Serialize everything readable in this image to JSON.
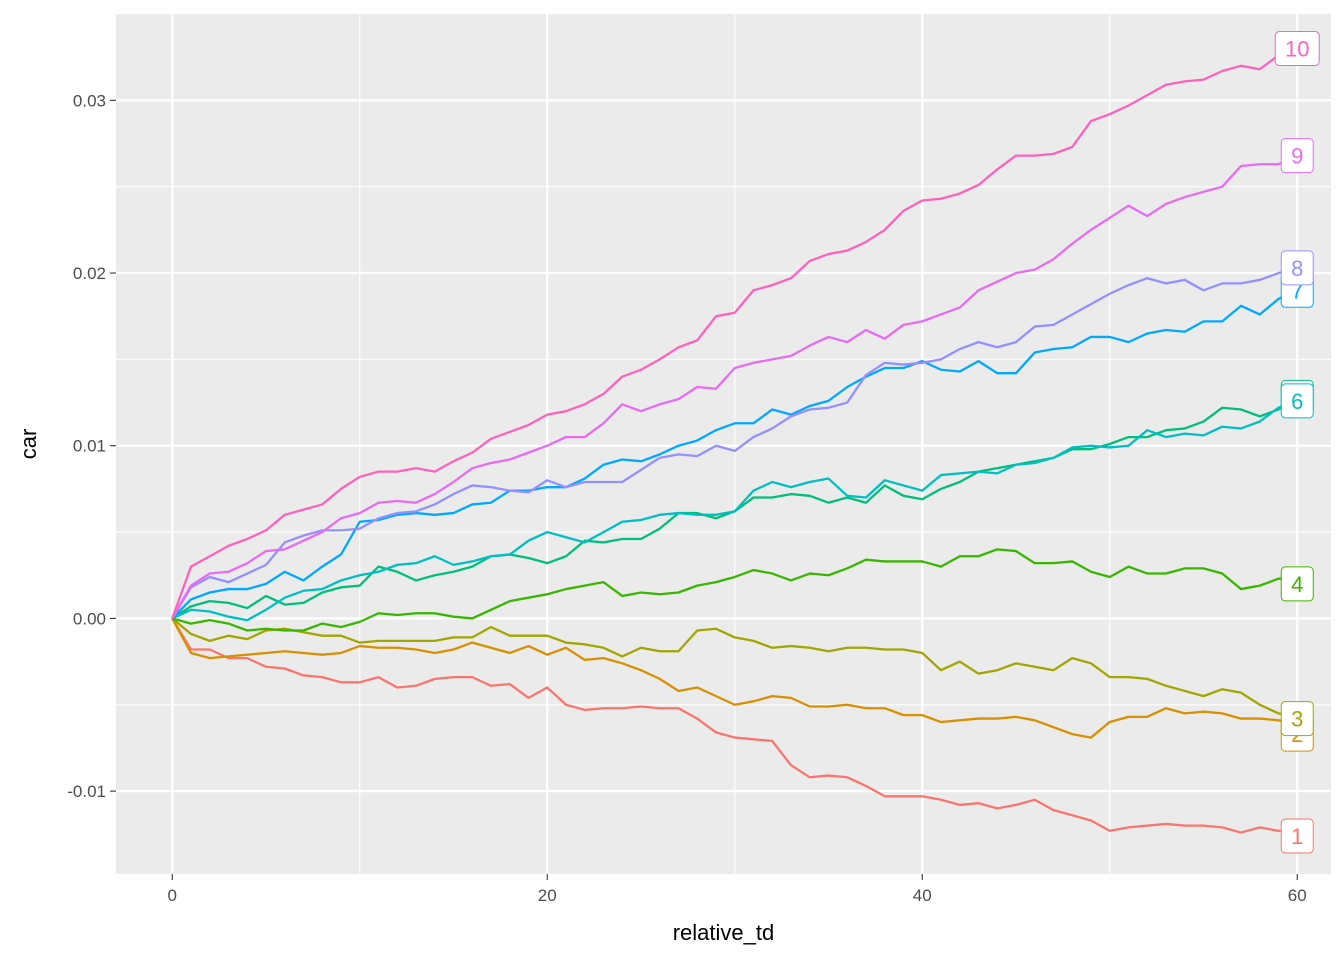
{
  "chart_data": {
    "type": "line",
    "title": "",
    "xlabel": "relative_td",
    "ylabel": "car",
    "xlim": [
      -3,
      61.8
    ],
    "ylim": [
      -0.0148,
      0.035
    ],
    "x_ticks": [
      0,
      20,
      40,
      60
    ],
    "x_tick_labels": [
      "0",
      "20",
      "40",
      "60"
    ],
    "y_ticks": [
      -0.01,
      0.0,
      0.01,
      0.02,
      0.03
    ],
    "y_tick_labels": [
      "-0.01",
      "0.00",
      "0.01",
      "0.02",
      "0.03"
    ],
    "grid": true,
    "legend": "none",
    "panel_background": "#EBEBEB",
    "grid_color": "#FFFFFF",
    "x_start": 0,
    "series": [
      {
        "name": "1",
        "color": "#F8766D",
        "label_y": -0.0126,
        "values": [
          0,
          -0.0018,
          -0.0018,
          -0.0023,
          -0.0023,
          -0.0028,
          -0.0029,
          -0.0033,
          -0.0034,
          -0.0037,
          -0.0037,
          -0.0034,
          -0.004,
          -0.0039,
          -0.0035,
          -0.0034,
          -0.0034,
          -0.0039,
          -0.0038,
          -0.0046,
          -0.004,
          -0.005,
          -0.0053,
          -0.0052,
          -0.0052,
          -0.0051,
          -0.0052,
          -0.0052,
          -0.0058,
          -0.0066,
          -0.0069,
          -0.007,
          -0.0071,
          -0.0085,
          -0.0092,
          -0.0091,
          -0.0092,
          -0.0097,
          -0.0103,
          -0.0103,
          -0.0103,
          -0.0105,
          -0.0108,
          -0.0107,
          -0.011,
          -0.0108,
          -0.0105,
          -0.0111,
          -0.0114,
          -0.0117,
          -0.0123,
          -0.0121,
          -0.012,
          -0.0119,
          -0.012,
          -0.012,
          -0.0121,
          -0.0124,
          -0.0121,
          -0.0123,
          -0.0124
        ]
      },
      {
        "name": "2",
        "color": "#D89000",
        "label_y": -0.0067,
        "values": [
          0,
          -0.002,
          -0.0023,
          -0.0022,
          -0.0021,
          -0.002,
          -0.0019,
          -0.002,
          -0.0021,
          -0.002,
          -0.0016,
          -0.0017,
          -0.0017,
          -0.0018,
          -0.002,
          -0.0018,
          -0.0014,
          -0.0017,
          -0.002,
          -0.0016,
          -0.0021,
          -0.0017,
          -0.0024,
          -0.0023,
          -0.0026,
          -0.003,
          -0.0035,
          -0.0042,
          -0.004,
          -0.0045,
          -0.005,
          -0.0048,
          -0.0045,
          -0.0046,
          -0.0051,
          -0.0051,
          -0.005,
          -0.0052,
          -0.0052,
          -0.0056,
          -0.0056,
          -0.006,
          -0.0059,
          -0.0058,
          -0.0058,
          -0.0057,
          -0.0059,
          -0.0063,
          -0.0067,
          -0.0069,
          -0.006,
          -0.0057,
          -0.0057,
          -0.0052,
          -0.0055,
          -0.0054,
          -0.0055,
          -0.0058,
          -0.0058,
          -0.0059,
          -0.0061
        ]
      },
      {
        "name": "3",
        "color": "#A3A500",
        "label_y": -0.0058,
        "values": [
          0,
          -0.0009,
          -0.0013,
          -0.001,
          -0.0012,
          -0.0007,
          -0.0006,
          -0.0008,
          -0.001,
          -0.001,
          -0.0014,
          -0.0013,
          -0.0013,
          -0.0013,
          -0.0013,
          -0.0011,
          -0.0011,
          -0.0005,
          -0.001,
          -0.001,
          -0.001,
          -0.0014,
          -0.0015,
          -0.0017,
          -0.0022,
          -0.0017,
          -0.0019,
          -0.0019,
          -0.0007,
          -0.0006,
          -0.0011,
          -0.0013,
          -0.0017,
          -0.0016,
          -0.0017,
          -0.0019,
          -0.0017,
          -0.0017,
          -0.0018,
          -0.0018,
          -0.002,
          -0.003,
          -0.0025,
          -0.0032,
          -0.003,
          -0.0026,
          -0.0028,
          -0.003,
          -0.0023,
          -0.0026,
          -0.0034,
          -0.0034,
          -0.0035,
          -0.0039,
          -0.0042,
          -0.0045,
          -0.0041,
          -0.0043,
          -0.005,
          -0.0055,
          -0.0057
        ]
      },
      {
        "name": "4",
        "color": "#39B600",
        "label_y": 0.002,
        "values": [
          0,
          -0.0003,
          -0.0001,
          -0.0003,
          -0.0007,
          -0.0006,
          -0.0007,
          -0.0007,
          -0.0003,
          -0.0005,
          -0.0002,
          0.0003,
          0.0002,
          0.0003,
          0.0003,
          0.0001,
          0.0,
          0.0005,
          0.001,
          0.0012,
          0.0014,
          0.0017,
          0.0019,
          0.0021,
          0.0013,
          0.0015,
          0.0014,
          0.0015,
          0.0019,
          0.0021,
          0.0024,
          0.0028,
          0.0026,
          0.0022,
          0.0026,
          0.0025,
          0.0029,
          0.0034,
          0.0033,
          0.0033,
          0.0033,
          0.003,
          0.0036,
          0.0036,
          0.004,
          0.0039,
          0.0032,
          0.0032,
          0.0033,
          0.0027,
          0.0024,
          0.003,
          0.0026,
          0.0026,
          0.0029,
          0.0029,
          0.0026,
          0.0017,
          0.0019,
          0.0023,
          0.0023
        ]
      },
      {
        "name": "5",
        "color": "#00BF7D",
        "label_y": 0.0128,
        "values": [
          0,
          0.0007,
          0.001,
          0.0009,
          0.0006,
          0.0013,
          0.0008,
          0.0009,
          0.0015,
          0.0018,
          0.0019,
          0.003,
          0.0027,
          0.0022,
          0.0025,
          0.0027,
          0.003,
          0.0036,
          0.0037,
          0.0035,
          0.0032,
          0.0036,
          0.0045,
          0.0044,
          0.0046,
          0.0046,
          0.0052,
          0.0061,
          0.0061,
          0.0058,
          0.0062,
          0.007,
          0.007,
          0.0072,
          0.0071,
          0.0067,
          0.007,
          0.0067,
          0.0077,
          0.0071,
          0.0069,
          0.0075,
          0.0079,
          0.0085,
          0.0087,
          0.0089,
          0.0091,
          0.0093,
          0.0098,
          0.0098,
          0.0101,
          0.0105,
          0.0105,
          0.0109,
          0.011,
          0.0114,
          0.0122,
          0.0121,
          0.0117,
          0.0121,
          0.0128
        ]
      },
      {
        "name": "6",
        "color": "#00BFC4",
        "label_y": 0.0126,
        "values": [
          0,
          0.0005,
          0.0004,
          0.0001,
          -0.0001,
          0.0005,
          0.0012,
          0.0016,
          0.0017,
          0.0022,
          0.0025,
          0.0027,
          0.0031,
          0.0032,
          0.0036,
          0.0031,
          0.0033,
          0.0036,
          0.0037,
          0.0045,
          0.005,
          0.0047,
          0.0044,
          0.005,
          0.0056,
          0.0057,
          0.006,
          0.0061,
          0.006,
          0.006,
          0.0062,
          0.0074,
          0.0079,
          0.0076,
          0.0079,
          0.0081,
          0.0071,
          0.007,
          0.008,
          0.0077,
          0.0074,
          0.0083,
          0.0084,
          0.0085,
          0.0084,
          0.0089,
          0.009,
          0.0093,
          0.0099,
          0.01,
          0.0099,
          0.01,
          0.0109,
          0.0105,
          0.0107,
          0.0106,
          0.0111,
          0.011,
          0.0114,
          0.0122,
          0.0126
        ]
      },
      {
        "name": "7",
        "color": "#00A9FF",
        "label_y": 0.019,
        "values": [
          0,
          0.0011,
          0.0015,
          0.0017,
          0.0017,
          0.002,
          0.0027,
          0.0022,
          0.003,
          0.0037,
          0.0056,
          0.0057,
          0.006,
          0.0061,
          0.006,
          0.0061,
          0.0066,
          0.0067,
          0.0074,
          0.0074,
          0.0076,
          0.0076,
          0.0081,
          0.0089,
          0.0092,
          0.0091,
          0.0095,
          0.01,
          0.0103,
          0.0109,
          0.0113,
          0.0113,
          0.0121,
          0.0118,
          0.0123,
          0.0126,
          0.0134,
          0.014,
          0.0145,
          0.0145,
          0.0149,
          0.0144,
          0.0143,
          0.0149,
          0.0142,
          0.0142,
          0.0154,
          0.0156,
          0.0157,
          0.0163,
          0.0163,
          0.016,
          0.0165,
          0.0167,
          0.0166,
          0.0172,
          0.0172,
          0.0181,
          0.0176,
          0.0185,
          0.019
        ]
      },
      {
        "name": "8",
        "color": "#9590FF",
        "label_y": 0.0203,
        "values": [
          0,
          0.0018,
          0.0024,
          0.0021,
          0.0026,
          0.0031,
          0.0044,
          0.0048,
          0.0051,
          0.0051,
          0.0052,
          0.0058,
          0.0061,
          0.0062,
          0.0066,
          0.0072,
          0.0077,
          0.0076,
          0.0074,
          0.0073,
          0.008,
          0.0076,
          0.0079,
          0.0079,
          0.0079,
          0.0086,
          0.0093,
          0.0095,
          0.0094,
          0.01,
          0.0097,
          0.0105,
          0.011,
          0.0117,
          0.0121,
          0.0122,
          0.0125,
          0.0141,
          0.0148,
          0.0147,
          0.0148,
          0.015,
          0.0156,
          0.016,
          0.0157,
          0.016,
          0.0169,
          0.017,
          0.0176,
          0.0182,
          0.0188,
          0.0193,
          0.0197,
          0.0194,
          0.0196,
          0.019,
          0.0194,
          0.0194,
          0.0196,
          0.02,
          0.0203
        ]
      },
      {
        "name": "9",
        "color": "#E76BF3",
        "label_y": 0.0268,
        "values": [
          0,
          0.0019,
          0.0026,
          0.0027,
          0.0032,
          0.0039,
          0.004,
          0.0045,
          0.005,
          0.0058,
          0.0061,
          0.0067,
          0.0068,
          0.0067,
          0.0072,
          0.0079,
          0.0087,
          0.009,
          0.0092,
          0.0096,
          0.01,
          0.0105,
          0.0105,
          0.0113,
          0.0124,
          0.012,
          0.0124,
          0.0127,
          0.0134,
          0.0133,
          0.0145,
          0.0148,
          0.015,
          0.0152,
          0.0158,
          0.0163,
          0.016,
          0.0167,
          0.0162,
          0.017,
          0.0172,
          0.0176,
          0.018,
          0.019,
          0.0195,
          0.02,
          0.0202,
          0.0208,
          0.0217,
          0.0225,
          0.0232,
          0.0239,
          0.0233,
          0.024,
          0.0244,
          0.0247,
          0.025,
          0.0262,
          0.0263,
          0.0263,
          0.0268
        ]
      },
      {
        "name": "10",
        "color": "#FF62BC",
        "label_y": 0.033,
        "values": [
          0,
          0.003,
          0.0036,
          0.0042,
          0.0046,
          0.0051,
          0.006,
          0.0063,
          0.0066,
          0.0075,
          0.0082,
          0.0085,
          0.0085,
          0.0087,
          0.0085,
          0.0091,
          0.0096,
          0.0104,
          0.0108,
          0.0112,
          0.0118,
          0.012,
          0.0124,
          0.013,
          0.014,
          0.0144,
          0.015,
          0.0157,
          0.0161,
          0.0175,
          0.0177,
          0.019,
          0.0193,
          0.0197,
          0.0207,
          0.0211,
          0.0213,
          0.0218,
          0.0225,
          0.0236,
          0.0242,
          0.0243,
          0.0246,
          0.0251,
          0.026,
          0.0268,
          0.0268,
          0.0269,
          0.0273,
          0.0288,
          0.0292,
          0.0297,
          0.0303,
          0.0309,
          0.0311,
          0.0312,
          0.0317,
          0.032,
          0.0318,
          0.0326,
          0.033
        ]
      }
    ]
  }
}
